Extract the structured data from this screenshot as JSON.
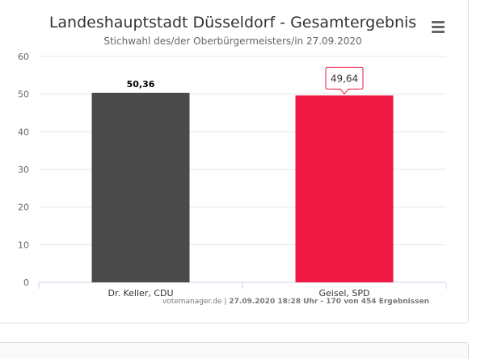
{
  "title": "Landeshauptstadt Düsseldorf - Gesamtergebnis",
  "subtitle": "Stichwahl des/der Oberbürgermeisters/in 27.09.2020",
  "credits": {
    "source": "votemanager.de",
    "separator": " | ",
    "status": "27.09.2020 18:28 Uhr - 170 von 454 Ergebnissen"
  },
  "tooltip": {
    "label": "49,64"
  },
  "icons": {
    "menu": "hamburger-menu-icon"
  },
  "chart_data": {
    "type": "bar",
    "title": "Landeshauptstadt Düsseldorf - Gesamtergebnis",
    "subtitle": "Stichwahl des/der Oberbürgermeisters/in 27.09.2020",
    "categories": [
      "Dr. Keller, CDU",
      "Geisel, SPD"
    ],
    "values": [
      50.36,
      49.64
    ],
    "data_labels": [
      "50,36",
      "49,64"
    ],
    "colors": [
      "#4a4a4a",
      "#ef1a43"
    ],
    "ylim": [
      0,
      60
    ],
    "yticks": [
      0,
      10,
      20,
      30,
      40,
      50,
      60
    ],
    "xlabel": "",
    "ylabel": "",
    "grid": true,
    "legend": "none"
  }
}
